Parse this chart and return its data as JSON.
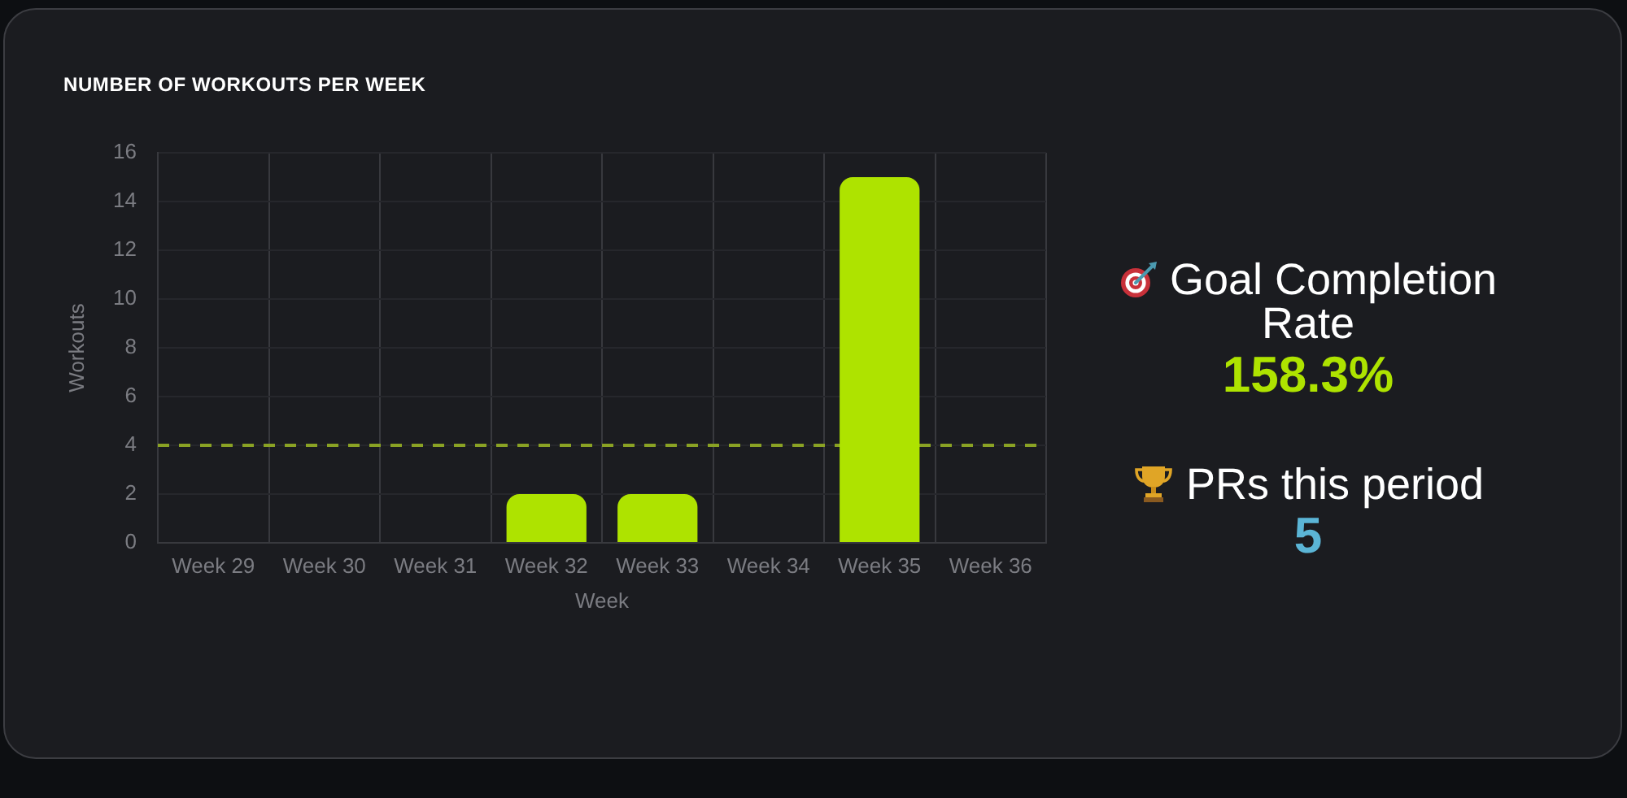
{
  "chart_data": [
    {
      "type": "bar",
      "title": "NUMBER OF WORKOUTS PER WEEK",
      "xlabel": "Week",
      "ylabel": "Workouts",
      "categories": [
        "Week 29",
        "Week 30",
        "Week 31",
        "Week 32",
        "Week 33",
        "Week 34",
        "Week 35",
        "Week 36"
      ],
      "values": [
        0,
        0,
        0,
        2,
        2,
        0,
        15,
        0
      ],
      "color": "#aee300",
      "ylim": [
        0,
        16
      ],
      "yticks": [
        0,
        2,
        4,
        6,
        8,
        10,
        12,
        14,
        16
      ],
      "grid": true,
      "ref_lines": [
        {
          "axis": "y",
          "value": 4,
          "color": "#8aa224",
          "line_style": "dashed"
        }
      ]
    },
    {
      "type": "other",
      "annotations": [
        "Goal Completion Rate",
        "158.3%",
        "PRs this period",
        "5"
      ]
    }
  ]
}
